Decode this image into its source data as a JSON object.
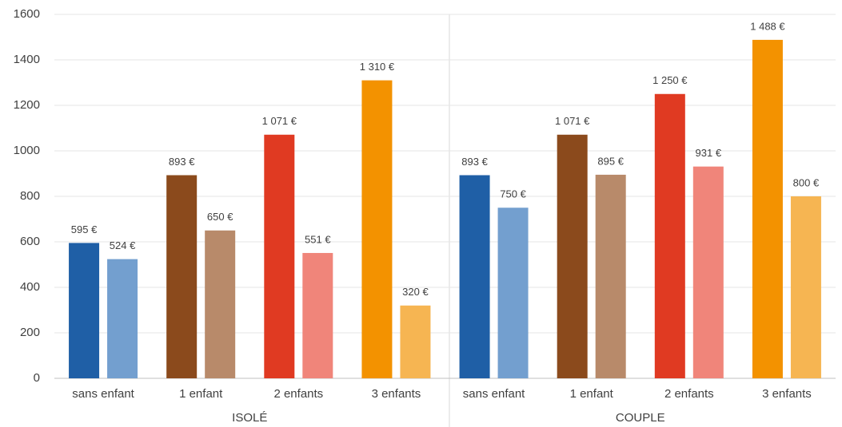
{
  "chart_data": {
    "type": "bar",
    "groups": [
      {
        "name": "ISOLÉ",
        "categories": [
          "sans enfant",
          "1 enfant",
          "2 enfants",
          "3 enfants"
        ]
      },
      {
        "name": "COUPLE",
        "categories": [
          "sans enfant",
          "1 enfant",
          "2 enfants",
          "3 enfants"
        ]
      }
    ],
    "series": [
      {
        "colors": [
          "#1f5fa6",
          "#8b4a1c",
          "#e03a22",
          "#f39200",
          "#1f5fa6",
          "#8b4a1c",
          "#e03a22",
          "#f39200"
        ],
        "values": [
          595,
          893,
          1071,
          1310,
          893,
          1071,
          1250,
          1488
        ],
        "value_labels": [
          "595 €",
          "893 €",
          "1 071 €",
          "1 310 €",
          "893 €",
          "1 071 €",
          "1 250 €",
          "1 488 €"
        ]
      },
      {
        "colors": [
          "#739fcf",
          "#b88a6a",
          "#f0857a",
          "#f6b552",
          "#739fcf",
          "#b88a6a",
          "#f0857a",
          "#f6b552"
        ],
        "values": [
          524,
          650,
          551,
          320,
          750,
          895,
          931,
          800
        ],
        "value_labels": [
          "524 €",
          "650 €",
          "551 €",
          "320 €",
          "750 €",
          "895 €",
          "931 €",
          "800 €"
        ]
      }
    ],
    "ylim": [
      0,
      1600
    ],
    "yticks": [
      0,
      200,
      400,
      600,
      800,
      1000,
      1200,
      1400,
      1600
    ],
    "grid": true
  }
}
